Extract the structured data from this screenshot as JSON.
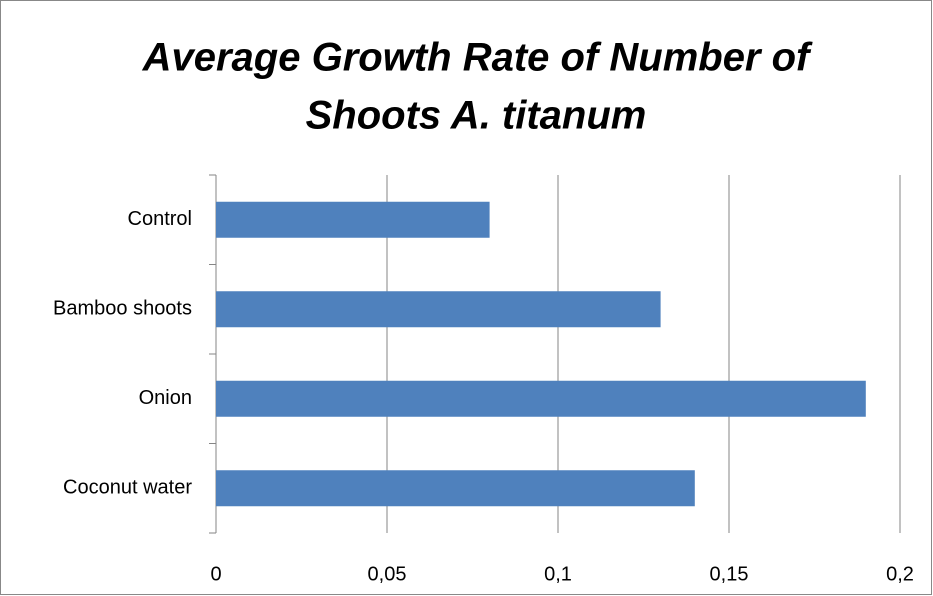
{
  "chart_data": {
    "type": "bar",
    "orientation": "horizontal",
    "title": [
      "Average Growth Rate of Number of",
      "Shoots  A. titanum"
    ],
    "categories": [
      "Control",
      "Bamboo shoots",
      "Onion",
      "Coconut water"
    ],
    "values": [
      0.08,
      0.13,
      0.19,
      0.14
    ],
    "color": "#4f81bd",
    "xlim": [
      0,
      0.2
    ],
    "xticks": [
      0,
      {
        "value": 0.05,
        "label": "0,05"
      },
      {
        "value": 0.1,
        "label": "0,1"
      },
      {
        "value": 0.15,
        "label": "0,15"
      },
      {
        "value": 0.2,
        "label": "0,2"
      }
    ],
    "grid": true
  }
}
